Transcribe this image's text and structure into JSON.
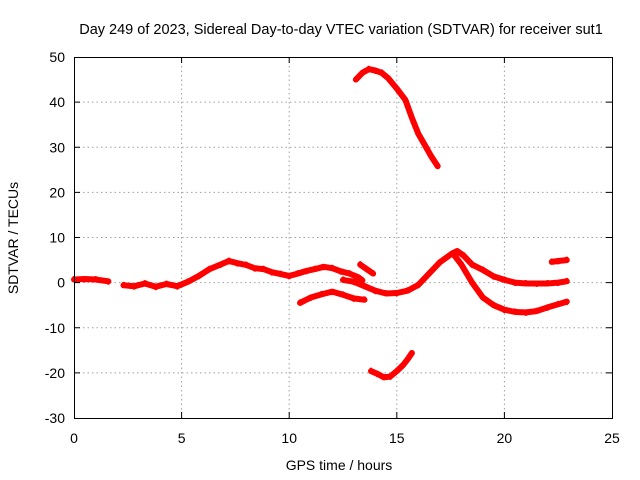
{
  "chart_data": {
    "type": "line",
    "title": "Day 249 of 2023, Sidereal Day-to-day VTEC variation (SDTVAR) for receiver sut1",
    "xlabel": "GPS time / hours",
    "ylabel": "SDTVAR / TECUs",
    "xlim": [
      0,
      25
    ],
    "ylim": [
      -30,
      50
    ],
    "grid": true,
    "xticks": [
      0,
      5,
      10,
      15,
      20,
      25
    ],
    "yticks": [
      -30,
      -20,
      -10,
      0,
      10,
      20,
      30,
      40,
      50
    ],
    "series_color": "#ff0000",
    "series": [
      {
        "name": "trace-1",
        "x": [
          0.0,
          0.5,
          1.0,
          1.6
        ],
        "y": [
          0.7,
          0.8,
          0.7,
          0.3
        ]
      },
      {
        "name": "trace-2",
        "x": [
          2.3,
          2.8,
          3.3,
          3.8,
          4.3,
          4.8,
          5.3,
          5.8,
          6.3,
          6.8,
          7.2,
          7.6,
          8.0,
          8.4,
          8.8,
          9.2,
          9.6,
          10.0,
          10.4,
          10.8,
          11.2,
          11.6,
          12.0,
          12.4,
          12.8,
          13.2,
          13.4
        ],
        "y": [
          -0.6,
          -0.8,
          -0.2,
          -0.9,
          -0.3,
          -0.8,
          0.2,
          1.5,
          3.0,
          4.0,
          4.8,
          4.3,
          3.9,
          3.2,
          3.0,
          2.3,
          1.9,
          1.5,
          2.0,
          2.6,
          3.0,
          3.5,
          3.2,
          2.5,
          2.0,
          1.2,
          0.5
        ]
      },
      {
        "name": "trace-3",
        "x": [
          13.3,
          13.6,
          13.9
        ],
        "y": [
          4.0,
          3.0,
          2.0
        ]
      },
      {
        "name": "trace-4",
        "x": [
          10.5,
          11.0,
          11.5,
          12.0,
          12.5,
          13.0,
          13.5
        ],
        "y": [
          -4.5,
          -3.3,
          -2.6,
          -2.0,
          -2.7,
          -3.5,
          -3.8
        ]
      },
      {
        "name": "trace-5",
        "x": [
          12.5,
          13.0,
          13.5,
          14.0,
          14.5,
          15.0,
          15.5,
          16.0,
          16.5,
          17.0,
          17.5,
          17.8,
          18.1,
          18.5,
          19.0,
          19.5,
          20.0,
          20.5,
          21.0,
          21.5,
          22.0,
          22.5,
          22.9
        ],
        "y": [
          0.6,
          0.2,
          -0.8,
          -1.8,
          -2.4,
          -2.3,
          -1.8,
          -0.5,
          2.0,
          4.5,
          6.2,
          7.0,
          6.0,
          4.0,
          2.8,
          1.4,
          0.6,
          0.0,
          -0.2,
          -0.2,
          -0.2,
          0.0,
          0.3
        ]
      },
      {
        "name": "trace-6",
        "x": [
          17.6,
          18.0,
          18.5,
          19.0,
          19.5,
          20.0,
          20.5,
          21.0,
          21.5,
          22.0,
          22.5,
          22.9
        ],
        "y": [
          6.5,
          4.0,
          0.0,
          -3.3,
          -5.0,
          -6.0,
          -6.5,
          -6.6,
          -6.3,
          -5.5,
          -4.8,
          -4.2
        ]
      },
      {
        "name": "trace-7",
        "x": [
          22.2,
          22.5,
          22.9
        ],
        "y": [
          4.6,
          4.8,
          5.0
        ]
      },
      {
        "name": "trace-8",
        "x": [
          13.1,
          13.4,
          13.7,
          14.0,
          14.3,
          14.6,
          15.0,
          15.4,
          15.7,
          16.0,
          16.3,
          16.6,
          16.9
        ],
        "y": [
          45.0,
          46.5,
          47.3,
          47.0,
          46.5,
          45.3,
          43.0,
          40.5,
          36.5,
          33.0,
          30.5,
          28.0,
          25.8
        ]
      },
      {
        "name": "trace-9",
        "x": [
          13.8,
          14.1,
          14.4,
          14.7,
          15.0,
          15.3,
          15.5,
          15.7
        ],
        "y": [
          -19.6,
          -20.2,
          -21.0,
          -20.8,
          -19.6,
          -18.2,
          -17.0,
          -15.6
        ]
      }
    ]
  }
}
